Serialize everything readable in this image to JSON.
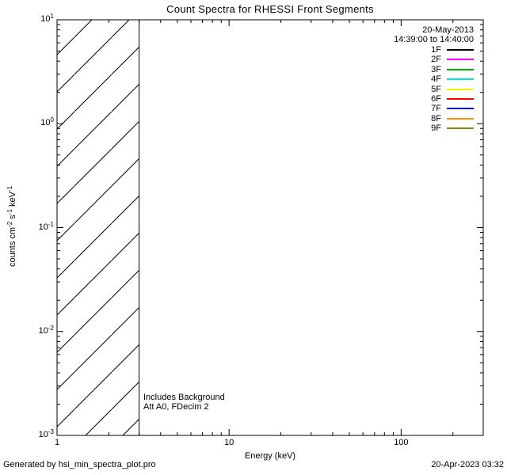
{
  "footer": {
    "left": "Generated by hsi_min_spectra_plot.pro",
    "right": "20-Apr-2023 03:32"
  },
  "chart_data": {
    "type": "line",
    "title": "Count Spectra for RHESSI Front Segments",
    "xlabel": "Energy (keV)",
    "ylabel": "counts cm^-2 s^-1 keV^-1",
    "ylabel_parts": [
      {
        "t": "counts cm",
        "sup": "-2"
      },
      {
        "t": " s",
        "sup": "-1"
      },
      {
        "t": " keV",
        "sup": "-1"
      }
    ],
    "xscale": "log",
    "yscale": "log",
    "xlim": [
      1,
      300
    ],
    "ylim": [
      0.001,
      10
    ],
    "x_major_ticks": [
      1,
      10,
      100
    ],
    "x_tick_labels": [
      "1",
      "10",
      "100"
    ],
    "y_major_exponents": [
      -3,
      -2,
      -1,
      0,
      1
    ],
    "y_tick_labels": [
      "10^-3",
      "10^-2",
      "10^-1",
      "10^0",
      "10^1"
    ],
    "grid": false,
    "legend_position": "top-right",
    "legend": {
      "date": "20-May-2013",
      "time_range": "14:39:00 to 14:40:00"
    },
    "series": [
      {
        "name": "1F",
        "color": "#000000",
        "values": []
      },
      {
        "name": "2F",
        "color": "#ff00ff",
        "values": []
      },
      {
        "name": "3F",
        "color": "#00b000",
        "values": []
      },
      {
        "name": "4F",
        "color": "#00e5e5",
        "values": []
      },
      {
        "name": "5F",
        "color": "#f5f500",
        "values": []
      },
      {
        "name": "6F",
        "color": "#ff0000",
        "values": []
      },
      {
        "name": "7F",
        "color": "#0000cc",
        "values": []
      },
      {
        "name": "8F",
        "color": "#ff9000",
        "values": []
      },
      {
        "name": "9F",
        "color": "#8a8a00",
        "values": []
      }
    ],
    "visible_curves": "none",
    "hatched_region": {
      "x_range": [
        1,
        3
      ],
      "style": "diagonal-hatch",
      "covers_full_y_range": true
    },
    "annotations": [
      "Includes Background",
      "Att A0, FDecim 2"
    ]
  }
}
